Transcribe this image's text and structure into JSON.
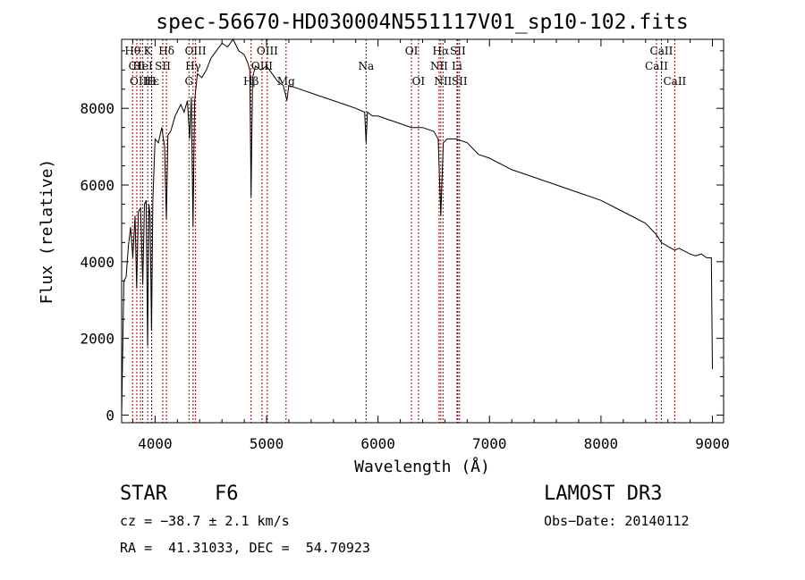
{
  "chart_data": {
    "type": "line",
    "title": "spec-56670-HD030004N551117V01_sp10-102.fits",
    "xlabel": "Wavelength (Å)",
    "ylabel": "Flux (relative)",
    "xlim": [
      3700,
      9100
    ],
    "ylim": [
      -200,
      9800
    ],
    "xticks": [
      4000,
      5000,
      6000,
      7000,
      8000,
      9000
    ],
    "yticks": [
      0,
      2000,
      4000,
      6000,
      8000
    ],
    "grid": false,
    "line_color": "#000000",
    "marker_color": "#a00000",
    "series": [
      {
        "name": "spectrum",
        "x": [
          3700,
          3720,
          3740,
          3760,
          3780,
          3800,
          3820,
          3835,
          3850,
          3870,
          3889,
          3905,
          3920,
          3933,
          3945,
          3955,
          3968,
          3980,
          4000,
          4030,
          4060,
          4085,
          4101,
          4115,
          4140,
          4180,
          4230,
          4260,
          4290,
          4310,
          4325,
          4340,
          4355,
          4380,
          4420,
          4460,
          4500,
          4550,
          4600,
          4650,
          4700,
          4750,
          4800,
          4830,
          4850,
          4861,
          4875,
          4900,
          4950,
          5000,
          5050,
          5100,
          5150,
          5183,
          5200,
          5300,
          5400,
          5500,
          5600,
          5700,
          5800,
          5880,
          5893,
          5905,
          5950,
          6000,
          6100,
          6200,
          6300,
          6400,
          6500,
          6540,
          6563,
          6585,
          6620,
          6700,
          6800,
          6900,
          7000,
          7200,
          7400,
          7600,
          7800,
          8000,
          8200,
          8400,
          8498,
          8542,
          8600,
          8662,
          8700,
          8800,
          8850,
          8900,
          8950,
          8990,
          9000
        ],
        "y": [
          0,
          3500,
          3600,
          4400,
          4900,
          4100,
          5200,
          3300,
          5300,
          5400,
          3400,
          5500,
          5600,
          1800,
          5500,
          5200,
          2200,
          5600,
          7200,
          7100,
          7500,
          7000,
          5100,
          7300,
          7400,
          7800,
          8100,
          7900,
          8200,
          7200,
          8300,
          4900,
          8200,
          8900,
          8800,
          9000,
          9300,
          9500,
          9700,
          9600,
          9800,
          9500,
          9400,
          9200,
          9000,
          5700,
          8800,
          9100,
          9000,
          9100,
          8900,
          8700,
          8600,
          8200,
          8600,
          8500,
          8400,
          8300,
          8200,
          8100,
          8000,
          7900,
          7100,
          7900,
          7800,
          7800,
          7700,
          7600,
          7500,
          7500,
          7400,
          7200,
          5200,
          7100,
          7200,
          7200,
          7100,
          6800,
          6700,
          6400,
          6200,
          6000,
          5800,
          5600,
          5300,
          5000,
          4700,
          4500,
          4400,
          4300,
          4350,
          4200,
          4150,
          4200,
          4100,
          4100,
          1200
        ]
      }
    ],
    "line_markers": [
      {
        "label": "Hθ",
        "x": 3798,
        "row": 1
      },
      {
        "label": "CII",
        "x": 3836,
        "row": 2
      },
      {
        "label": "OIII",
        "x": 3869,
        "row": 3
      },
      {
        "label": "K",
        "x": 3934,
        "row": 1
      },
      {
        "label": "HeI",
        "x": 3889,
        "row": 2
      },
      {
        "label": "Hε",
        "x": 3970,
        "row": 3
      },
      {
        "label": "Hδ",
        "x": 4102,
        "row": 1
      },
      {
        "label": "SII",
        "x": 4069,
        "row": 2
      },
      {
        "label": "H",
        "x": 3968,
        "row": 3
      },
      {
        "label": "OIII",
        "x": 4363,
        "row": 1
      },
      {
        "label": "Hγ",
        "x": 4341,
        "row": 2
      },
      {
        "label": "G",
        "x": 4304,
        "row": 3
      },
      {
        "label": "OIII",
        "x": 5007,
        "row": 1
      },
      {
        "label": "OIII",
        "x": 4959,
        "row": 2
      },
      {
        "label": "Hβ",
        "x": 4861,
        "row": 3
      },
      {
        "label": "Mg",
        "x": 5175,
        "row": 3
      },
      {
        "label": "Na",
        "x": 5893,
        "row": 2
      },
      {
        "label": "OI",
        "x": 6300,
        "row": 1
      },
      {
        "label": "OI",
        "x": 6363,
        "row": 3
      },
      {
        "label": "Hα",
        "x": 6563,
        "row": 1
      },
      {
        "label": "SII",
        "x": 6716,
        "row": 1
      },
      {
        "label": "NII",
        "x": 6548,
        "row": 2
      },
      {
        "label": "Li",
        "x": 6708,
        "row": 2
      },
      {
        "label": "NII",
        "x": 6583,
        "row": 3
      },
      {
        "label": "SII",
        "x": 6731,
        "row": 3
      },
      {
        "label": "CaII",
        "x": 8542,
        "row": 1
      },
      {
        "label": "CaII",
        "x": 8498,
        "row": 2
      },
      {
        "label": "CaII",
        "x": 8662,
        "row": 3
      }
    ]
  },
  "info": {
    "object_class": "STAR",
    "subclass": "F6",
    "survey": "LAMOST DR3",
    "redshift": "cz = −38.7 ± 2.1 km/s",
    "obs_date": "Obs−Date: 20140112",
    "coords": "RA =  41.31033, DEC =  54.70923"
  }
}
